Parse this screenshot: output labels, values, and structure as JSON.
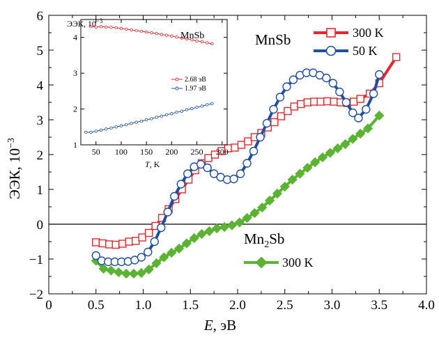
{
  "chart_data": {
    "type": "line",
    "xlabel": "E, эВ",
    "xlabel_italic": "E",
    "xlabel_unit": ", эВ",
    "ylabel": "ЭЭК, 10",
    "ylabel_exp": "−3",
    "xlim": [
      0,
      4.0
    ],
    "ylim": [
      -2,
      6
    ],
    "xticks": [
      "0",
      "0.5",
      "1.0",
      "1.5",
      "2.0",
      "2.5",
      "3.0",
      "3.5",
      "4.0"
    ],
    "yticks": [
      "−2",
      "−1",
      "0",
      "1",
      "2",
      "3",
      "4",
      "5",
      "6"
    ],
    "zero_line": true,
    "labels": {
      "mnsb": "MnSb",
      "mn2sb_base": "Mn",
      "mn2sb_sub": "2",
      "mn2sb_rest": "Sb"
    },
    "series": [
      {
        "name": "300 K",
        "group": "MnSb",
        "color": "#e8242c",
        "marker": "square",
        "x": [
          0.5,
          0.57,
          0.64,
          0.71,
          0.78,
          0.85,
          0.92,
          0.99,
          1.06,
          1.13,
          1.2,
          1.27,
          1.34,
          1.41,
          1.48,
          1.55,
          1.62,
          1.69,
          1.76,
          1.83,
          1.9,
          1.97,
          2.04,
          2.11,
          2.18,
          2.25,
          2.32,
          2.39,
          2.46,
          2.53,
          2.6,
          2.67,
          2.74,
          2.81,
          2.88,
          2.95,
          3.02,
          3.09,
          3.16,
          3.23,
          3.3,
          3.4,
          3.5,
          3.68
        ],
        "values": [
          -0.52,
          -0.55,
          -0.58,
          -0.59,
          -0.56,
          -0.5,
          -0.48,
          -0.38,
          -0.25,
          -0.05,
          0.18,
          0.43,
          0.72,
          1.0,
          1.28,
          1.55,
          1.75,
          1.9,
          2.0,
          2.1,
          2.18,
          2.2,
          2.28,
          2.38,
          2.5,
          2.62,
          2.78,
          2.93,
          3.1,
          3.25,
          3.38,
          3.45,
          3.5,
          3.52,
          3.52,
          3.53,
          3.52,
          3.5,
          3.48,
          3.52,
          3.6,
          3.75,
          4.05,
          4.8
        ]
      },
      {
        "name": "50 K",
        "group": "MnSb",
        "color": "#1f4fa0",
        "marker": "circle",
        "x": [
          0.5,
          0.56,
          0.63,
          0.7,
          0.77,
          0.84,
          0.91,
          0.98,
          1.05,
          1.12,
          1.19,
          1.26,
          1.33,
          1.4,
          1.47,
          1.54,
          1.61,
          1.68,
          1.75,
          1.82,
          1.89,
          1.96,
          2.03,
          2.1,
          2.17,
          2.24,
          2.31,
          2.38,
          2.45,
          2.52,
          2.59,
          2.66,
          2.73,
          2.8,
          2.87,
          2.94,
          3.01,
          3.08,
          3.15,
          3.22,
          3.28,
          3.36,
          3.44,
          3.5
        ],
        "values": [
          -0.9,
          -1.05,
          -1.08,
          -1.08,
          -1.08,
          -1.07,
          -1.03,
          -0.95,
          -0.8,
          -0.5,
          -0.1,
          0.35,
          0.8,
          1.15,
          1.45,
          1.65,
          1.72,
          1.62,
          1.45,
          1.35,
          1.28,
          1.3,
          1.45,
          1.75,
          2.1,
          2.5,
          2.9,
          3.3,
          3.65,
          3.95,
          4.15,
          4.28,
          4.35,
          4.35,
          4.28,
          4.2,
          4.05,
          3.8,
          3.5,
          3.2,
          3.05,
          3.3,
          3.75,
          4.3
        ]
      },
      {
        "name": "300 K",
        "group": "Mn2Sb",
        "color": "#5ab431",
        "marker": "diamond",
        "x": [
          0.5,
          0.58,
          0.66,
          0.74,
          0.82,
          0.9,
          0.98,
          1.06,
          1.14,
          1.22,
          1.3,
          1.38,
          1.46,
          1.54,
          1.62,
          1.7,
          1.78,
          1.86,
          1.94,
          2.02,
          2.1,
          2.18,
          2.26,
          2.34,
          2.42,
          2.5,
          2.58,
          2.66,
          2.74,
          2.82,
          2.9,
          2.98,
          3.06,
          3.14,
          3.22,
          3.3,
          3.38,
          3.5
        ],
        "values": [
          -1.05,
          -1.28,
          -1.33,
          -1.38,
          -1.42,
          -1.42,
          -1.4,
          -1.3,
          -1.12,
          -0.95,
          -0.82,
          -0.7,
          -0.55,
          -0.4,
          -0.28,
          -0.2,
          -0.12,
          -0.08,
          -0.03,
          0.05,
          0.18,
          0.32,
          0.48,
          0.68,
          0.88,
          1.08,
          1.28,
          1.45,
          1.62,
          1.78,
          1.92,
          2.05,
          2.18,
          2.3,
          2.45,
          2.6,
          2.75,
          3.12
        ]
      }
    ],
    "inset": {
      "type": "line",
      "title": "MnSb",
      "ylabel": "ЭЭК, 10",
      "ylabel_exp": "−3",
      "xlabel_italic": "T",
      "xlabel_unit": ", K",
      "xlim": [
        20,
        310
      ],
      "ylim": [
        1,
        4.5
      ],
      "xticks": [
        "50",
        "100",
        "150",
        "200",
        "250",
        "300"
      ],
      "yticks": [
        "1",
        "2",
        "3",
        "4"
      ],
      "series": [
        {
          "name": "2.68 эВ",
          "color": "#e8242c",
          "marker": "circle",
          "x": [
            40,
            50,
            60,
            70,
            80,
            90,
            100,
            110,
            120,
            130,
            140,
            150,
            160,
            170,
            180,
            190,
            200,
            210,
            220,
            230,
            240,
            250,
            260,
            270,
            280
          ],
          "values": [
            4.3,
            4.29,
            4.3,
            4.29,
            4.28,
            4.27,
            4.25,
            4.23,
            4.21,
            4.19,
            4.17,
            4.15,
            4.13,
            4.11,
            4.08,
            4.06,
            4.04,
            4.01,
            3.98,
            3.96,
            3.93,
            3.9,
            3.88,
            3.85,
            3.82
          ]
        },
        {
          "name": "1.97 эВ",
          "color": "#1f4fa0",
          "marker": "circle",
          "x": [
            30,
            40,
            50,
            60,
            70,
            80,
            90,
            100,
            110,
            120,
            130,
            140,
            150,
            160,
            170,
            180,
            190,
            200,
            210,
            220,
            230,
            240,
            250,
            260,
            270,
            280
          ],
          "values": [
            1.35,
            1.35,
            1.38,
            1.41,
            1.44,
            1.47,
            1.5,
            1.53,
            1.56,
            1.6,
            1.63,
            1.66,
            1.7,
            1.73,
            1.77,
            1.8,
            1.84,
            1.87,
            1.91,
            1.94,
            1.98,
            2.01,
            2.05,
            2.08,
            2.12,
            2.15
          ]
        }
      ]
    }
  }
}
